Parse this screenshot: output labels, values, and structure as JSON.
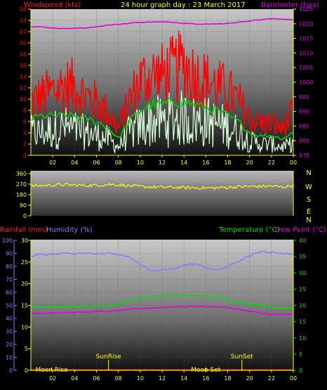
{
  "header": {
    "left_label": "Windspeed (kts)",
    "title": "24 hour graph day : 23 March 2017",
    "right_label": "Barometer (hpa)"
  },
  "colors": {
    "wind_red": "#ff0000",
    "wind_green": "#00d000",
    "wind_pale": "#d8ffd8",
    "barometer": "#e000e0",
    "direction": "#ffff00",
    "humidity": "#8080ff",
    "temperature": "#00e000",
    "dewpoint": "#e000e0",
    "rainfall": "#ff2020",
    "axis_yellow": "#ffff00"
  },
  "chart_data": [
    {
      "type": "line",
      "name": "wind-barometer",
      "x_ticks": [
        "02",
        "04",
        "06",
        "08",
        "10",
        "12",
        "14",
        "16",
        "18",
        "20",
        "22",
        "00"
      ],
      "ylim_left": [
        0,
        26
      ],
      "yticks_left": [
        0,
        2,
        4,
        6,
        8,
        10,
        12,
        14,
        16,
        18,
        20,
        22,
        24,
        26
      ],
      "ylim_right": [
        975,
        1025
      ],
      "yticks_right": [
        975,
        980,
        985,
        990,
        995,
        1000,
        1005,
        1010,
        1015,
        1020,
        1025
      ],
      "xlabel": "",
      "ylabel_left": "Windspeed (kts)",
      "ylabel_right": "Barometer (hpa)",
      "series": [
        {
          "name": "Gust",
          "axis": "left",
          "x": [
            0,
            1,
            2,
            3,
            4,
            5,
            6,
            7,
            8,
            9,
            10,
            11,
            12,
            13,
            14,
            15,
            16,
            17,
            18,
            19,
            20,
            21,
            22,
            23,
            24
          ],
          "values": [
            10,
            11,
            12,
            13,
            13,
            11,
            10,
            8,
            5,
            10,
            14,
            15,
            15,
            16,
            17,
            15,
            14,
            13,
            12,
            10,
            7,
            6,
            6,
            5,
            8
          ]
        },
        {
          "name": "Average",
          "axis": "left",
          "x": [
            0,
            1,
            2,
            3,
            4,
            5,
            6,
            7,
            8,
            9,
            10,
            11,
            12,
            13,
            14,
            15,
            16,
            17,
            18,
            19,
            20,
            21,
            22,
            23,
            24
          ],
          "values": [
            6.5,
            7,
            7,
            7,
            7,
            6.5,
            6,
            5,
            3,
            6,
            8,
            9,
            9,
            9.5,
            9.5,
            9,
            8.5,
            8,
            7,
            6,
            4,
            3.5,
            3.5,
            3,
            4
          ]
        },
        {
          "name": "Minimum",
          "axis": "left",
          "x": [
            0,
            1,
            2,
            3,
            4,
            5,
            6,
            7,
            8,
            9,
            10,
            11,
            12,
            13,
            14,
            15,
            16,
            17,
            18,
            19,
            20,
            21,
            22,
            23,
            24
          ],
          "values": [
            4,
            4,
            4.5,
            5,
            4.5,
            4,
            3.5,
            3,
            1.5,
            4,
            5,
            6,
            6,
            6.5,
            6.5,
            6,
            6,
            5.5,
            5,
            4,
            2.5,
            2,
            2,
            1.5,
            2
          ]
        },
        {
          "name": "Barometer",
          "axis": "right",
          "x": [
            0,
            1,
            2,
            3,
            4,
            5,
            6,
            7,
            8,
            9,
            10,
            11,
            12,
            13,
            14,
            15,
            16,
            17,
            18,
            19,
            20,
            21,
            22,
            23,
            24
          ],
          "values": [
            1019,
            1019,
            1018.5,
            1018.3,
            1018.5,
            1018.6,
            1019,
            1019.5,
            1019.8,
            1020.2,
            1020.5,
            1020.6,
            1020.6,
            1020.5,
            1020.2,
            1020,
            1019.9,
            1019.9,
            1020.2,
            1020.5,
            1021,
            1021.4,
            1021.7,
            1021.6,
            1021.4
          ]
        }
      ]
    },
    {
      "type": "line",
      "name": "wind-direction",
      "ylim": [
        0,
        360
      ],
      "yticks": [
        0,
        90,
        180,
        270,
        360
      ],
      "compass_labels": [
        "N",
        "W",
        "S",
        "E",
        "N"
      ],
      "series": [
        {
          "name": "Direction",
          "x": [
            0,
            1,
            2,
            3,
            4,
            5,
            6,
            7,
            8,
            9,
            10,
            11,
            12,
            13,
            14,
            15,
            16,
            17,
            18,
            19,
            20,
            21,
            22,
            23,
            24
          ],
          "values": [
            255,
            258,
            262,
            265,
            262,
            258,
            260,
            268,
            265,
            255,
            250,
            245,
            243,
            242,
            240,
            238,
            236,
            238,
            242,
            248,
            250,
            250,
            255,
            245,
            258
          ]
        }
      ]
    },
    {
      "type": "line",
      "name": "temp-humidity-rain",
      "x_ticks": [
        "02",
        "04",
        "06",
        "08",
        "10",
        "12",
        "14",
        "16",
        "18",
        "20",
        "22",
        "00"
      ],
      "ylim_left_rain": [
        0,
        30
      ],
      "yticks_left_rain": [
        0,
        5,
        10,
        15,
        20,
        25,
        30
      ],
      "ylim_left_humidity": [
        0,
        100
      ],
      "yticks_left_humidity": [
        0,
        10,
        20,
        30,
        40,
        50,
        60,
        70,
        80,
        90,
        100
      ],
      "ylim_right": [
        0,
        40
      ],
      "yticks_right": [
        0,
        5,
        10,
        15,
        20,
        25,
        30,
        35,
        40
      ],
      "ylabel_left_rain": "Rainfall (mm)",
      "ylabel_left_humidity": "Humidity (%)",
      "ylabel_right_temp": "Temperature (°C)",
      "ylabel_right_dew": "Dew Point (°C)",
      "series": [
        {
          "name": "Humidity",
          "axis": "left_humidity",
          "x": [
            0,
            1,
            2,
            3,
            4,
            5,
            6,
            7,
            8,
            9,
            10,
            11,
            12,
            13,
            14,
            15,
            16,
            17,
            18,
            19,
            20,
            21,
            22,
            23,
            24
          ],
          "values": [
            88,
            89,
            89,
            90,
            90,
            90,
            90,
            90,
            89,
            87,
            82,
            76,
            77,
            78,
            81,
            82,
            79,
            77,
            80,
            84,
            88,
            91,
            91,
            90,
            89
          ]
        },
        {
          "name": "Temperature",
          "axis": "right",
          "x": [
            0,
            1,
            2,
            3,
            4,
            5,
            6,
            7,
            8,
            9,
            10,
            11,
            12,
            13,
            14,
            15,
            16,
            17,
            18,
            19,
            20,
            21,
            22,
            23,
            24
          ],
          "values": [
            19.5,
            19.5,
            19.5,
            19.6,
            19.7,
            19.8,
            19.8,
            19.8,
            20.3,
            21.3,
            22,
            22.5,
            22.9,
            23.2,
            23.2,
            23,
            22.8,
            22.5,
            21.8,
            21,
            20.5,
            20.2,
            19.6,
            19,
            19.2
          ]
        },
        {
          "name": "Dew Point",
          "axis": "right",
          "x": [
            0,
            1,
            2,
            3,
            4,
            5,
            6,
            7,
            8,
            9,
            10,
            11,
            12,
            13,
            14,
            15,
            16,
            17,
            18,
            19,
            20,
            21,
            22,
            23,
            24
          ],
          "values": [
            17.5,
            17.6,
            17.7,
            17.8,
            17.8,
            17.9,
            18.1,
            18.1,
            18.5,
            18.8,
            19,
            19.2,
            19.3,
            19.5,
            19.6,
            19.6,
            19.6,
            19.5,
            19.3,
            18.8,
            18.2,
            17.6,
            17.2,
            17.2,
            17.3
          ]
        },
        {
          "name": "Rainfall",
          "axis": "left_rain",
          "x": [
            0,
            24
          ],
          "values": [
            0,
            0
          ]
        }
      ],
      "annotations": [
        {
          "label": "Moon Rise",
          "hour": 1.9,
          "row": "bottom"
        },
        {
          "label": "SunRise",
          "hour": 7.1,
          "row": "top"
        },
        {
          "label": "Moon Set",
          "hour": 16.0,
          "row": "bottom"
        },
        {
          "label": "SunSet",
          "hour": 19.3,
          "row": "top"
        }
      ]
    }
  ],
  "bottom_header": {
    "rainfall_label": "Rainfall (mm)",
    "humidity_label": "Humidity (%)",
    "temperature_label": "Temperature (°C)",
    "dewpoint_label": "Dew Point (°C)"
  }
}
